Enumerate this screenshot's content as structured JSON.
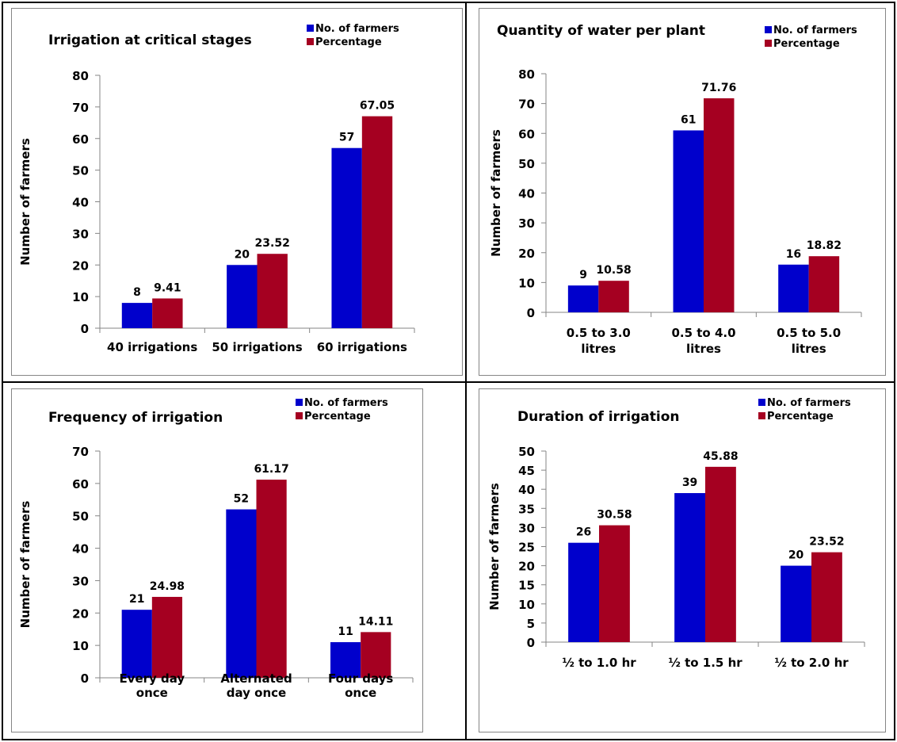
{
  "colors": {
    "series1": "#0000cc",
    "series2": "#a50021",
    "axis": "#868686",
    "text": "#000000"
  },
  "chart_data": [
    {
      "type": "bar",
      "title": "Irrigation at critical stages",
      "ylabel": "Number of farmers",
      "xlabel": "",
      "ylim": [
        0,
        80
      ],
      "ytick_step": 10,
      "categories": [
        [
          "40 irrigations"
        ],
        [
          "50 irrigations"
        ],
        [
          "60 irrigations"
        ]
      ],
      "series": [
        {
          "name": "No. of farmers",
          "values": [
            8,
            20,
            57
          ],
          "labels": [
            "8",
            "20",
            "57"
          ]
        },
        {
          "name": "Percentage",
          "values": [
            9.41,
            23.52,
            67.05
          ],
          "labels": [
            "9.41",
            "23.52",
            "67.05"
          ]
        }
      ],
      "legend_position": "top-right",
      "grid": false
    },
    {
      "type": "bar",
      "title": "Quantity of water per plant",
      "ylabel": "Number of farmers",
      "xlabel": "",
      "ylim": [
        0,
        80
      ],
      "ytick_step": 10,
      "categories": [
        [
          "0.5 to 3.0",
          "litres"
        ],
        [
          "0.5 to 4.0",
          "litres"
        ],
        [
          "0.5 to 5.0",
          "litres"
        ]
      ],
      "series": [
        {
          "name": "No. of farmers",
          "values": [
            9,
            61,
            16
          ],
          "labels": [
            "9",
            "61",
            "16"
          ]
        },
        {
          "name": "Percentage",
          "values": [
            10.58,
            71.76,
            18.82
          ],
          "labels": [
            "10.58",
            "71.76",
            "18.82"
          ]
        }
      ],
      "legend_position": "top-right",
      "grid": false
    },
    {
      "type": "bar",
      "title": "Frequency of irrigation",
      "ylabel": "Number of farmers",
      "xlabel": "",
      "ylim": [
        0,
        70
      ],
      "ytick_step": 10,
      "categories": [
        [
          "Every day",
          "once"
        ],
        [
          "Alternated",
          "day once"
        ],
        [
          "Four days",
          "once"
        ]
      ],
      "series": [
        {
          "name": "No. of farmers",
          "values": [
            21,
            52,
            11
          ],
          "labels": [
            "21",
            "52",
            "11"
          ]
        },
        {
          "name": "Percentage",
          "values": [
            24.98,
            61.17,
            14.11
          ],
          "labels": [
            "24.98",
            "61.17",
            "14.11"
          ]
        }
      ],
      "legend_position": "top-right",
      "grid": false
    },
    {
      "type": "bar",
      "title": "Duration of irrigation",
      "ylabel": "Number of farmers",
      "xlabel": "",
      "ylim": [
        0,
        50
      ],
      "ytick_step": 5,
      "categories": [
        [
          "½ to 1.0 hr"
        ],
        [
          "½ to 1.5 hr"
        ],
        [
          "½ to 2.0 hr"
        ]
      ],
      "series": [
        {
          "name": "No. of farmers",
          "values": [
            26,
            39,
            20
          ],
          "labels": [
            "26",
            "39",
            "20"
          ]
        },
        {
          "name": "Percentage",
          "values": [
            30.58,
            45.88,
            23.52
          ],
          "labels": [
            "30.58",
            "45.88",
            "23.52"
          ]
        }
      ],
      "legend_position": "top-right",
      "grid": false
    }
  ]
}
